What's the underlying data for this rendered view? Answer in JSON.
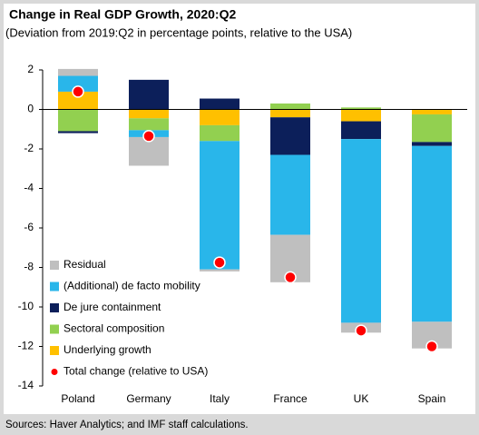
{
  "chart_data": {
    "type": "bar",
    "stacked": true,
    "title": "Change in Real GDP Growth, 2020:Q2",
    "subtitle": "(Deviation from 2019:Q2 in percentage points, relative to the USA)",
    "source": "Sources: Haver Analytics; and IMF staff calculations.",
    "categories": [
      "Poland",
      "Germany",
      "Italy",
      "France",
      "UK",
      "Spain"
    ],
    "series": [
      {
        "name": "Residual",
        "color": "#bfbfbf",
        "values": [
          0.35,
          -1.45,
          -0.1,
          -2.4,
          -0.5,
          -1.35
        ]
      },
      {
        "name": "(Additional) de facto mobility",
        "color": "#29b6ea",
        "values": [
          0.8,
          -0.35,
          -6.5,
          -4.05,
          -9.3,
          -8.9
        ]
      },
      {
        "name": "De jure containment",
        "color": "#0c1f5a",
        "values": [
          -0.1,
          1.5,
          0.55,
          -1.9,
          -0.9,
          -0.2
        ]
      },
      {
        "name": "Sectoral composition",
        "color": "#92d050",
        "values": [
          -1.1,
          -0.6,
          -0.8,
          0.3,
          0.1,
          -1.4
        ]
      },
      {
        "name": "Underlying growth",
        "color": "#ffc000",
        "values": [
          0.9,
          -0.45,
          -0.8,
          -0.4,
          -0.6,
          -0.25
        ]
      },
      {
        "name": "Total change (relative to USA)",
        "color": "#ff0000",
        "type": "scatter",
        "values": [
          0.9,
          -1.35,
          -7.75,
          -8.5,
          -11.2,
          -12.0
        ]
      }
    ],
    "ylim": [
      -14,
      2
    ],
    "yticks": [
      2,
      0,
      -2,
      -4,
      -6,
      -8,
      -10,
      -12,
      -14
    ],
    "legend": "bottom-left"
  }
}
